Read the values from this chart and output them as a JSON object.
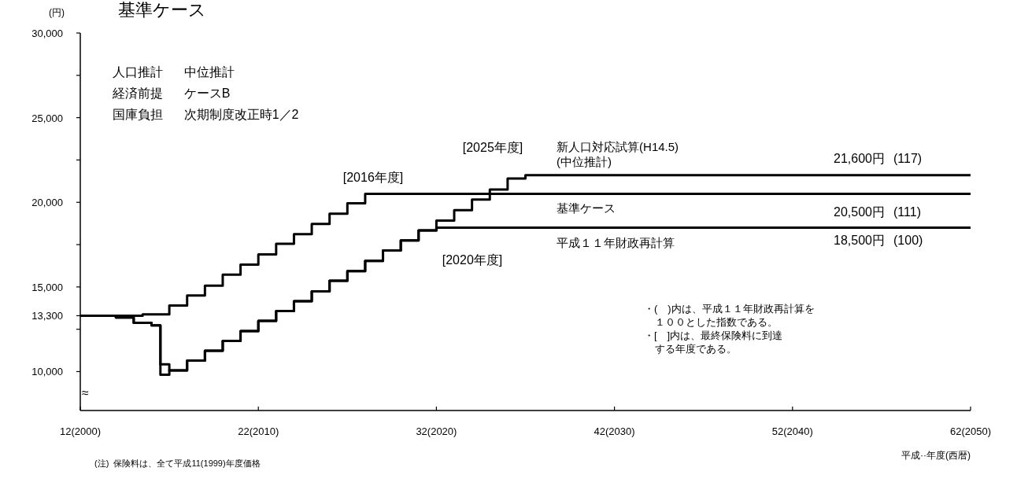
{
  "chart_data": {
    "type": "step",
    "title": "基準ケース",
    "ylabel": "(円)",
    "xlabel": "平成··年度(西暦)",
    "categories": [
      "12(2000)",
      null,
      null,
      null,
      null,
      null,
      null,
      null,
      null,
      null,
      null,
      null,
      null,
      null,
      null,
      null,
      null,
      null,
      null,
      null,
      "22(2010)",
      null,
      null,
      null,
      null,
      null,
      null,
      null,
      null,
      null,
      null,
      null,
      null,
      null,
      null,
      null,
      null,
      null,
      null,
      null,
      "32(2020)",
      null,
      null,
      null,
      null,
      null,
      null,
      null,
      null,
      null,
      null,
      null,
      null,
      null,
      null,
      null,
      null,
      null,
      null,
      null,
      "42(2030)",
      null,
      null,
      null,
      null,
      null,
      null,
      null,
      null,
      null,
      null,
      null,
      null,
      null,
      null,
      null,
      null,
      null,
      null,
      null,
      "52(2040)",
      null,
      null,
      null,
      null,
      null,
      null,
      null,
      null,
      null,
      null,
      null,
      null,
      null,
      null,
      null,
      null,
      null,
      null,
      null,
      "62(2050)"
    ],
    "ylim": [
      7700,
      30000
    ],
    "yticks": [
      {
        "value": 10000,
        "label": "10,000"
      },
      {
        "value": 12500,
        "label": null
      },
      {
        "value": 13300,
        "label": "13,300"
      },
      {
        "value": 15000,
        "label": "15,000"
      },
      {
        "value": 17500,
        "label": null
      },
      {
        "value": 20000,
        "label": "20,000"
      },
      {
        "value": 22500,
        "label": null
      },
      {
        "value": 25000,
        "label": "25,000"
      },
      {
        "value": 27500,
        "label": null
      },
      {
        "value": 30000,
        "label": "30,000"
      }
    ],
    "series": [
      {
        "name": "新人口対応試算(H14.5)\n(中位推計)",
        "color": "#000000",
        "values": [
          13300,
          13300,
          13300,
          13300,
          13190,
          13190,
          12880,
          12880,
          12730,
          10430,
          10070,
          10070,
          10650,
          10650,
          11230,
          11230,
          11810,
          11810,
          12390,
          12390,
          13000,
          13000,
          13580,
          13580,
          14160,
          14160,
          14740,
          14740,
          15370,
          15370,
          15940,
          15940,
          16540,
          16540,
          17150,
          17150,
          17750,
          17750,
          18340,
          18340,
          18920,
          18920,
          19540,
          19540,
          20160,
          20160,
          20750,
          20750,
          21400,
          21400,
          21600,
          21600,
          21600,
          21600,
          21600,
          21600,
          21600,
          21600,
          21600,
          21600,
          21600,
          21600,
          21600,
          21600,
          21600,
          21600,
          21600,
          21600,
          21600,
          21600,
          21600,
          21600,
          21600,
          21600,
          21600,
          21600,
          21600,
          21600,
          21600,
          21600,
          21600,
          21600,
          21600,
          21600,
          21600,
          21600,
          21600,
          21600,
          21600,
          21600,
          21600,
          21600,
          21600,
          21600,
          21600,
          21600,
          21600,
          21600,
          21600,
          21600,
          21600
        ]
      },
      {
        "name": "基準ケース",
        "color": "#000000",
        "values": [
          13300,
          13300,
          13300,
          13300,
          13300,
          13300,
          13300,
          13380,
          13380,
          13380,
          13900,
          13900,
          14500,
          14500,
          15080,
          15080,
          15730,
          15730,
          16320,
          16320,
          16920,
          16920,
          17550,
          17550,
          18120,
          18120,
          18720,
          18720,
          19330,
          19330,
          19940,
          19940,
          20500,
          20500,
          20500,
          20500,
          20500,
          20500,
          20500,
          20500,
          20500,
          20500,
          20500,
          20500,
          20500,
          20500,
          20500,
          20500,
          20500,
          20500,
          20500,
          20500,
          20500,
          20500,
          20500,
          20500,
          20500,
          20500,
          20500,
          20500,
          20500,
          20500,
          20500,
          20500,
          20500,
          20500,
          20500,
          20500,
          20500,
          20500,
          20500,
          20500,
          20500,
          20500,
          20500,
          20500,
          20500,
          20500,
          20500,
          20500,
          20500,
          20500,
          20500,
          20500,
          20500,
          20500,
          20500,
          20500,
          20500,
          20500,
          20500,
          20500,
          20500,
          20500,
          20500,
          20500,
          20500,
          20500,
          20500,
          20500,
          20500
        ]
      },
      {
        "name": "平成１１年財政再計算",
        "color": "#000000",
        "values": [
          13300,
          13300,
          13300,
          13300,
          13190,
          13190,
          12880,
          12880,
          12730,
          9810,
          10070,
          10070,
          10650,
          10650,
          11230,
          11230,
          11810,
          11810,
          12390,
          12390,
          13000,
          13000,
          13580,
          13580,
          14160,
          14160,
          14740,
          14740,
          15370,
          15370,
          15940,
          15940,
          16540,
          16540,
          17150,
          17150,
          17750,
          17750,
          18340,
          18340,
          18500,
          18500,
          18500,
          18500,
          18500,
          18500,
          18500,
          18500,
          18500,
          18500,
          18500,
          18500,
          18500,
          18500,
          18500,
          18500,
          18500,
          18500,
          18500,
          18500,
          18500,
          18500,
          18500,
          18500,
          18500,
          18500,
          18500,
          18500,
          18500,
          18500,
          18500,
          18500,
          18500,
          18500,
          18500,
          18500,
          18500,
          18500,
          18500,
          18500,
          18500,
          18500,
          18500,
          18500,
          18500,
          18500,
          18500,
          18500,
          18500,
          18500,
          18500,
          18500,
          18500,
          18500,
          18500,
          18500,
          18500,
          18500,
          18500,
          18500,
          18500
        ]
      }
    ],
    "annotations": [
      "人口推計      中位推計",
      "経済前提      ケースB",
      "国庫負担      次期制度改正時1／2",
      "・(　)内は、平成１１年財政再計算を",
      "１００とした指数である。",
      "・[　]内は、最終保険料に到達",
      "する年度である。",
      "(注)  保険料は、全て平成11(1999)年度価格",
      "≈",
      "21,600円",
      "(117)",
      "20,500円",
      "(111)",
      "18,500円",
      "(100)",
      "[2025年度]",
      "[2016年度]",
      "[2020年度]"
    ]
  }
}
